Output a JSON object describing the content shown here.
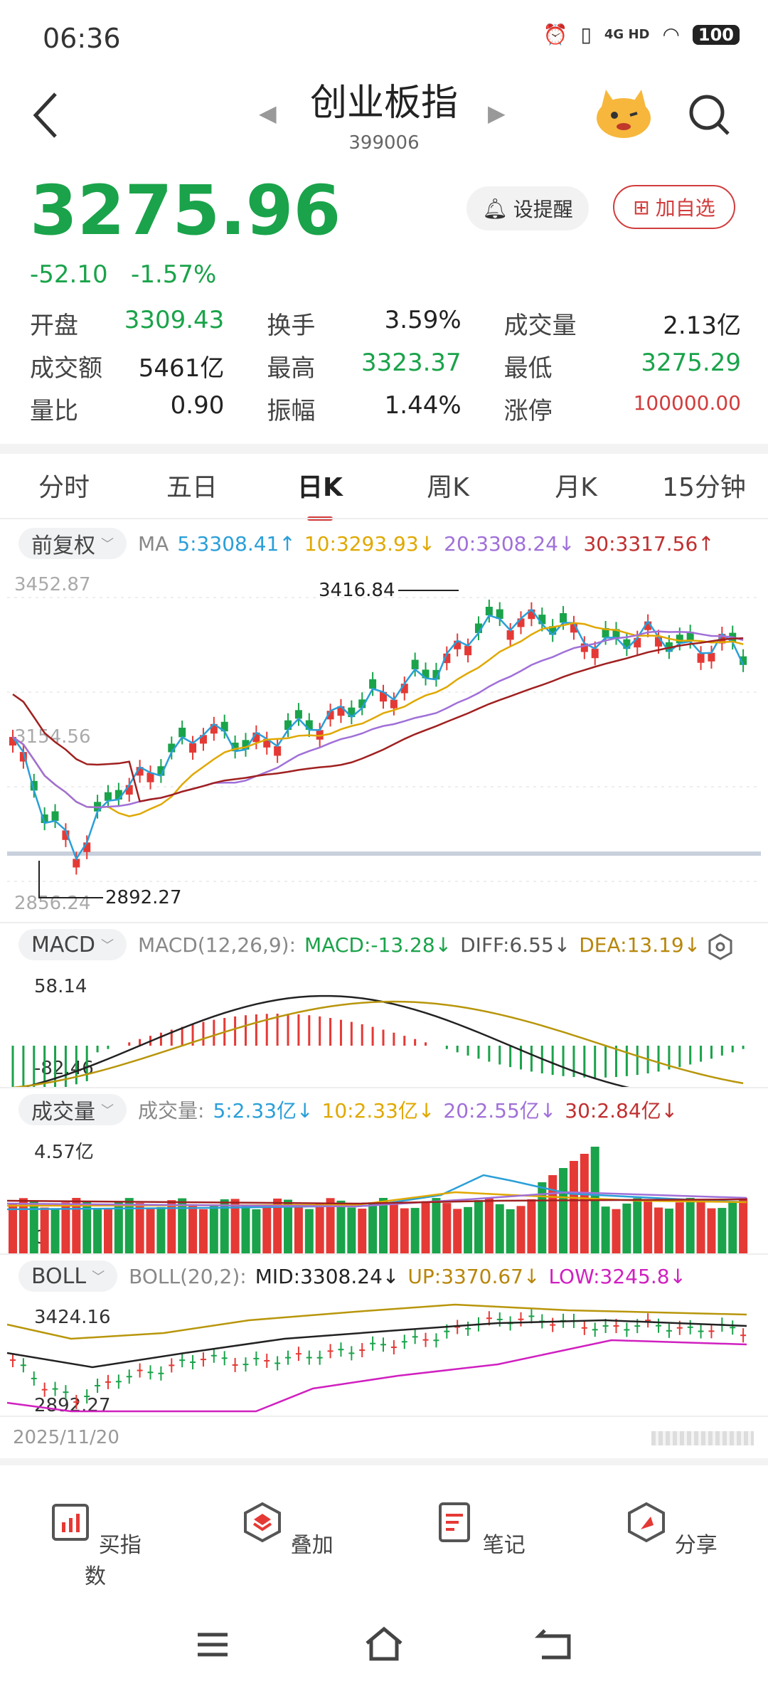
{
  "status": {
    "time": "06:36",
    "network": "4G HD",
    "battery": "100"
  },
  "header": {
    "title": "创业板指",
    "code": "399006"
  },
  "quote": {
    "price": "3275.96",
    "change": "-52.10",
    "change_pct": "-1.57%",
    "remind_label": "设提醒",
    "fav_label": "加自选"
  },
  "stats": [
    [
      {
        "label": "开盘",
        "value": "3309.43",
        "color": "#1aa34a"
      },
      {
        "label": "换手",
        "value": "3.59%",
        "color": "#222222"
      },
      {
        "label": "成交量",
        "value": "2.13亿",
        "color": "#222222"
      }
    ],
    [
      {
        "label": "成交额",
        "value": "5461亿",
        "color": "#222222"
      },
      {
        "label": "最高",
        "value": "3323.37",
        "color": "#1aa34a"
      },
      {
        "label": "最低",
        "value": "3275.29",
        "color": "#1aa34a"
      }
    ],
    [
      {
        "label": "量比",
        "value": "0.90",
        "color": "#222222"
      },
      {
        "label": "振幅",
        "value": "1.44%",
        "color": "#222222"
      },
      {
        "label": "涨停",
        "value": "100000.00",
        "color": "#d23c3c"
      }
    ]
  ],
  "tabs": [
    "分时",
    "五日",
    "日K",
    "周K",
    "月K",
    "15分钟"
  ],
  "active_tab": "日K",
  "ma_bar": {
    "adjust": "前复权",
    "label": "MA",
    "items": [
      {
        "text": "5:3308.41↑",
        "color": "#2a9fd8"
      },
      {
        "text": "10:3293.93↓",
        "color": "#e0a800"
      },
      {
        "text": "20:3308.24↓",
        "color": "#a070d8"
      },
      {
        "text": "30:3317.56↑",
        "color": "#c03030"
      }
    ]
  },
  "kline": {
    "y_top": "3452.87",
    "y_mid": "3154.56",
    "y_bottom": "2856.24",
    "high_mark": "3416.84",
    "low_mark": "2892.27"
  },
  "macd_bar": {
    "name": "MACD",
    "params": "MACD(12,26,9):",
    "items": [
      {
        "text": "MACD:-13.28↓",
        "color": "#1aa34a"
      },
      {
        "text": "DIFF:6.55↓",
        "color": "#555555"
      },
      {
        "text": "DEA:13.19↓",
        "color": "#b8860b"
      }
    ],
    "y_top": "58.14",
    "y_bottom": "-82.46"
  },
  "vol_bar": {
    "name": "成交量",
    "params": "成交量:",
    "items": [
      {
        "text": "5:2.33亿↓",
        "color": "#2a9fd8"
      },
      {
        "text": "10:2.33亿↓",
        "color": "#e0a800"
      },
      {
        "text": "20:2.55亿↓",
        "color": "#a070d8"
      },
      {
        "text": "30:2.84亿↓",
        "color": "#c03030"
      }
    ],
    "y_top": "4.57亿",
    "y_bottom": "0"
  },
  "boll_bar": {
    "name": "BOLL",
    "params": "BOLL(20,2):",
    "items": [
      {
        "text": "MID:3308.24↓",
        "color": "#222222"
      },
      {
        "text": "UP:3370.67↓",
        "color": "#b8860b"
      },
      {
        "text": "LOW:3245.8↓",
        "color": "#d020c0"
      }
    ],
    "y_top": "3424.16",
    "y_bottom": "2892.27"
  },
  "date_label": "2025/11/20",
  "bottom_nav": [
    "买指数",
    "叠加",
    "笔记",
    "分享"
  ],
  "colors": {
    "up": "#e53935",
    "down": "#1aa34a"
  }
}
